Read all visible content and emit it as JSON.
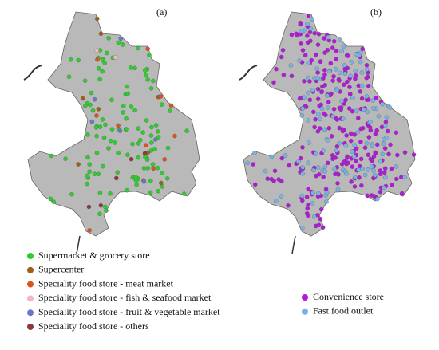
{
  "panels": [
    {
      "label": "(a)",
      "legend": [
        {
          "name": "Supermarket & grocery store",
          "color": "#2ecc2e"
        },
        {
          "name": "Supercenter",
          "color": "#a0601a"
        },
        {
          "name": "Speciality food store - meat market",
          "color": "#d9541e"
        },
        {
          "name": "Speciality food store - fish & seafood market",
          "color": "#f4b6c2"
        },
        {
          "name": "Speciality food store - fruit & vegetable market",
          "color": "#6a78c8"
        },
        {
          "name": "Speciality food store - others",
          "color": "#8a3a3a"
        }
      ]
    },
    {
      "label": "(b)",
      "legend": [
        {
          "name": "Convenience store",
          "color": "#b01ad8"
        },
        {
          "name": "Fast food outlet",
          "color": "#7ab2e6"
        }
      ]
    }
  ]
}
